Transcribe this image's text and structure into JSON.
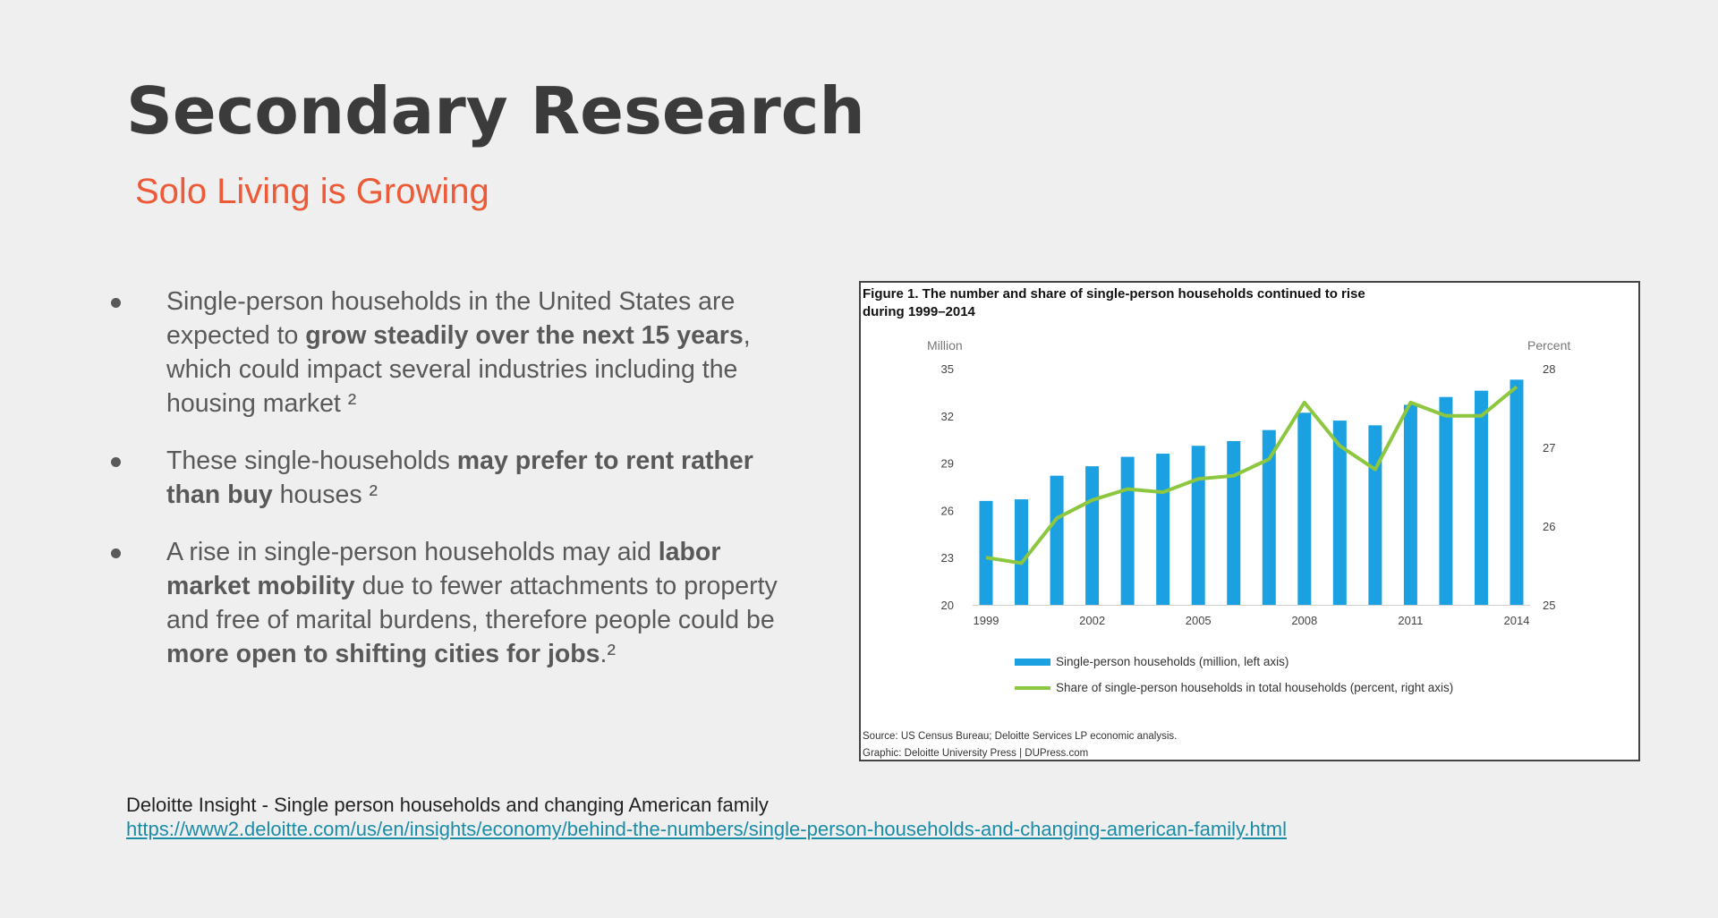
{
  "slide": {
    "title": "Secondary Research",
    "subtitle": "Solo Living is Growing"
  },
  "bullets": [
    {
      "parts": [
        {
          "text": "Single-person households in the United States are expected to ",
          "bold": false
        },
        {
          "text": "grow steadily over the next 15 years",
          "bold": true
        },
        {
          "text": ", which could impact several industries including the housing market ²",
          "bold": false
        }
      ]
    },
    {
      "parts": [
        {
          "text": "These single-households ",
          "bold": false
        },
        {
          "text": "may prefer to rent rather than buy",
          "bold": true
        },
        {
          "text": " houses ²",
          "bold": false
        }
      ]
    },
    {
      "parts": [
        {
          "text": "A rise in single-person households may aid ",
          "bold": false
        },
        {
          "text": "labor market mobility",
          "bold": true
        },
        {
          "text": " due to fewer attachments to property and free of marital burdens, therefore people could be ",
          "bold": false
        },
        {
          "text": "more open to shifting cities for jobs",
          "bold": true
        },
        {
          "text": ".²",
          "bold": false
        }
      ]
    }
  ],
  "source": {
    "label": "Deloitte Insight  - Single person households and changing American family",
    "url": "https://www2.deloitte.com/us/en/insights/economy/behind-the-numbers/single-person-households-and-changing-american-family.html"
  },
  "figure": {
    "title_line1": "Figure 1. The number and share of single-person households continued to rise",
    "title_line2": "during 1999–2014",
    "source_line": "Source: US Census Bureau; Deloitte Services LP economic analysis.",
    "graphic_line": "Graphic: Deloitte University Press  |  DUPress.com"
  },
  "colors": {
    "bar": "#1ba1e2",
    "line": "#8dc63f",
    "title": "#3b3b3b",
    "subtitle": "#ec5a37",
    "link": "#1a8ca8"
  },
  "chart_data": {
    "type": "bar",
    "title": "Figure 1. The number and share of single-person households continued to rise during 1999–2014",
    "x": [
      1999,
      2000,
      2001,
      2002,
      2003,
      2004,
      2005,
      2006,
      2007,
      2008,
      2009,
      2010,
      2011,
      2012,
      2013,
      2014
    ],
    "x_tick_labels": [
      "1999",
      "2002",
      "2005",
      "2008",
      "2011",
      "2014"
    ],
    "x_ticks": [
      1999,
      2002,
      2005,
      2008,
      2011,
      2014
    ],
    "ylabel": "Million",
    "ylim": [
      20,
      35
    ],
    "y_ticks": [
      20,
      23,
      26,
      29,
      32,
      35
    ],
    "y2label": "Percent",
    "y2lim": [
      25,
      28
    ],
    "y2_ticks": [
      25,
      26,
      27,
      28
    ],
    "series": [
      {
        "name": "Single-person households (million, left axis)",
        "type": "bar",
        "axis": "left",
        "values": [
          26.6,
          26.7,
          28.2,
          28.8,
          29.4,
          29.6,
          30.1,
          30.4,
          31.1,
          32.2,
          31.7,
          31.4,
          32.7,
          33.2,
          33.6,
          34.3
        ]
      },
      {
        "name": "Share of single-person households in total households (percent, right axis)",
        "type": "line",
        "axis": "right",
        "values": [
          25.6,
          25.53,
          26.1,
          26.33,
          26.47,
          26.43,
          26.6,
          26.64,
          26.85,
          27.57,
          27.02,
          26.72,
          27.57,
          27.4,
          27.4,
          27.77
        ]
      }
    ],
    "grid": false,
    "legend": "bottom"
  }
}
